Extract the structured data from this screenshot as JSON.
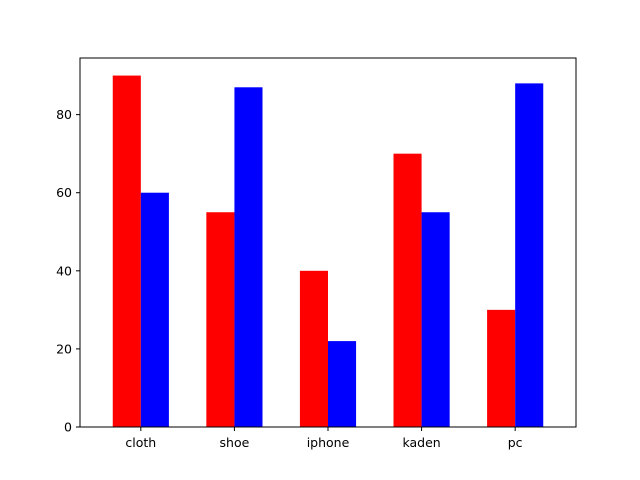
{
  "chart_data": {
    "type": "bar",
    "title": "",
    "xlabel": "",
    "ylabel": "",
    "categories": [
      "cloth",
      "shoe",
      "iphone",
      "kaden",
      "pc"
    ],
    "series": [
      {
        "values": [
          90,
          55,
          40,
          70,
          30
        ],
        "color": "#ff0000"
      },
      {
        "values": [
          60,
          87,
          22,
          55,
          88
        ],
        "color": "#0000ff"
      }
    ],
    "ylim": [
      0,
      94.5
    ],
    "yticks": [
      0,
      20,
      40,
      60,
      80
    ],
    "grid": false,
    "legend": null
  }
}
